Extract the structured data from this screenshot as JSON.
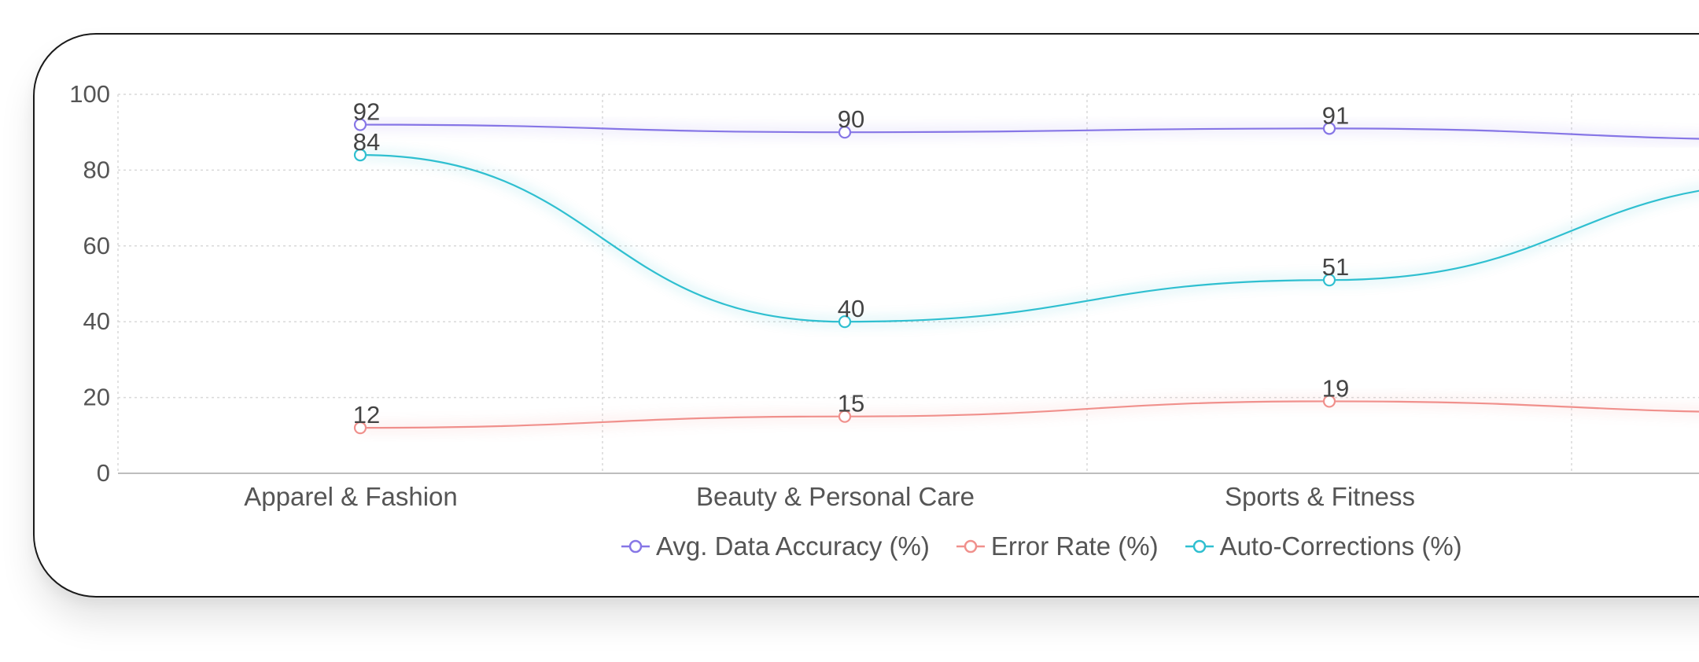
{
  "chart_data": {
    "type": "line",
    "title": "",
    "xlabel": "",
    "ylabel": "",
    "categories": [
      "Apparel & Fashion",
      "Beauty & Personal Care",
      "Sports & Fitness"
    ],
    "ylim": [
      0,
      100
    ],
    "yticks": [
      "0",
      "20",
      "40",
      "60",
      "80",
      "100"
    ],
    "grid": true,
    "legend_position": "bottom",
    "series": [
      {
        "name": "Avg. Data Accuracy (%)",
        "values": [
          92,
          90,
          91
        ],
        "color": "#8676e6"
      },
      {
        "name": "Error Rate (%)",
        "values": [
          12,
          15,
          19
        ],
        "color": "#f0908c"
      },
      {
        "name": "Auto-Corrections (%)",
        "values": [
          84,
          40,
          51
        ],
        "color": "#2fbfd0"
      }
    ]
  }
}
